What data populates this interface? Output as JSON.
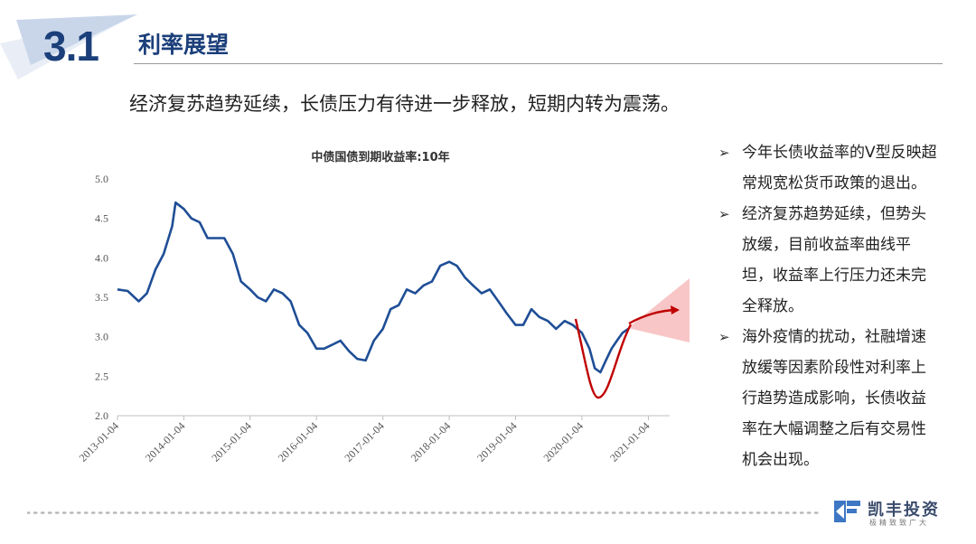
{
  "header": {
    "section_number": "3.1",
    "section_title": "利率展望",
    "headline": "经济复苏趋势延续，长债压力有待进一步释放，短期内转为震荡。"
  },
  "chart_data": {
    "type": "line",
    "title": "中债国债到期收益率:10年",
    "xlabel": "",
    "ylabel": "",
    "ylim": [
      2.0,
      5.0
    ],
    "yticks": [
      "5.0",
      "4.5",
      "4.0",
      "3.5",
      "3.0",
      "2.5",
      "2.0"
    ],
    "xticks": [
      "2013-01-04",
      "2014-01-04",
      "2015-01-04",
      "2016-01-04",
      "2017-01-04",
      "2018-01-04",
      "2019-01-04",
      "2020-01-04",
      "2021-01-04"
    ],
    "xlim": [
      "2013-01-04",
      "2021-05-01"
    ],
    "grid": false,
    "series": [
      {
        "color": "#1f4e96",
        "x": [
          "2013-01-04",
          "2013-03-01",
          "2013-05-01",
          "2013-06-15",
          "2013-08-01",
          "2013-09-15",
          "2013-11-01",
          "2013-11-20",
          "2014-01-04",
          "2014-02-15",
          "2014-04-01",
          "2014-05-15",
          "2014-07-01",
          "2014-08-15",
          "2014-10-01",
          "2014-11-15",
          "2015-01-04",
          "2015-02-15",
          "2015-04-01",
          "2015-05-15",
          "2015-07-01",
          "2015-08-15",
          "2015-10-01",
          "2015-11-15",
          "2016-01-04",
          "2016-02-15",
          "2016-04-01",
          "2016-05-15",
          "2016-07-01",
          "2016-08-15",
          "2016-10-01",
          "2016-11-15",
          "2017-01-04",
          "2017-02-15",
          "2017-04-01",
          "2017-05-15",
          "2017-07-01",
          "2017-08-15",
          "2017-10-01",
          "2017-11-15",
          "2018-01-04",
          "2018-02-15",
          "2018-04-01",
          "2018-05-15",
          "2018-07-01",
          "2018-08-15",
          "2018-10-01",
          "2018-11-15",
          "2019-01-04",
          "2019-02-15",
          "2019-04-01",
          "2019-05-15",
          "2019-07-01",
          "2019-08-15",
          "2019-10-01",
          "2019-11-15",
          "2020-01-04",
          "2020-02-15",
          "2020-03-15",
          "2020-04-15",
          "2020-05-15",
          "2020-06-15",
          "2020-07-15",
          "2020-08-15",
          "2020-09-15"
        ],
        "values": [
          3.6,
          3.58,
          3.45,
          3.55,
          3.85,
          4.05,
          4.4,
          4.7,
          4.62,
          4.5,
          4.45,
          4.25,
          4.25,
          4.25,
          4.05,
          3.7,
          3.6,
          3.5,
          3.45,
          3.6,
          3.55,
          3.45,
          3.15,
          3.05,
          2.85,
          2.85,
          2.9,
          2.95,
          2.82,
          2.72,
          2.7,
          2.95,
          3.1,
          3.35,
          3.4,
          3.6,
          3.55,
          3.65,
          3.7,
          3.9,
          3.95,
          3.9,
          3.75,
          3.65,
          3.55,
          3.6,
          3.45,
          3.3,
          3.15,
          3.15,
          3.35,
          3.25,
          3.2,
          3.1,
          3.2,
          3.15,
          3.05,
          2.85,
          2.6,
          2.55,
          2.7,
          2.85,
          2.95,
          3.05,
          3.1
        ]
      }
    ],
    "annotations": [
      "forecast-cone",
      "v-shape-curve",
      "forecast-arrow"
    ]
  },
  "bullets": [
    {
      "lines": [
        "今年长债收益率的V型反映超",
        "常规宽松货币政策的退出。"
      ]
    },
    {
      "lines": [
        "经济复苏趋势延续，但势头",
        "放缓，目前收益率曲线平",
        "坦，收益率上行压力还未完",
        "全释放。"
      ]
    },
    {
      "lines": [
        "海外疫情的扰动，社融增速",
        "放缓等因素阶段性对利率上",
        "行趋势造成影响，长债收益",
        "率在大幅调整之后有交易性",
        "机会出现。"
      ]
    }
  ],
  "logo": {
    "name": "凯丰投资",
    "tagline": "极精致致广大"
  },
  "colors": {
    "primary": "#1b3f7a",
    "line": "#1f4e96",
    "accent": "#c00000",
    "cone": "#f4a9a9"
  }
}
